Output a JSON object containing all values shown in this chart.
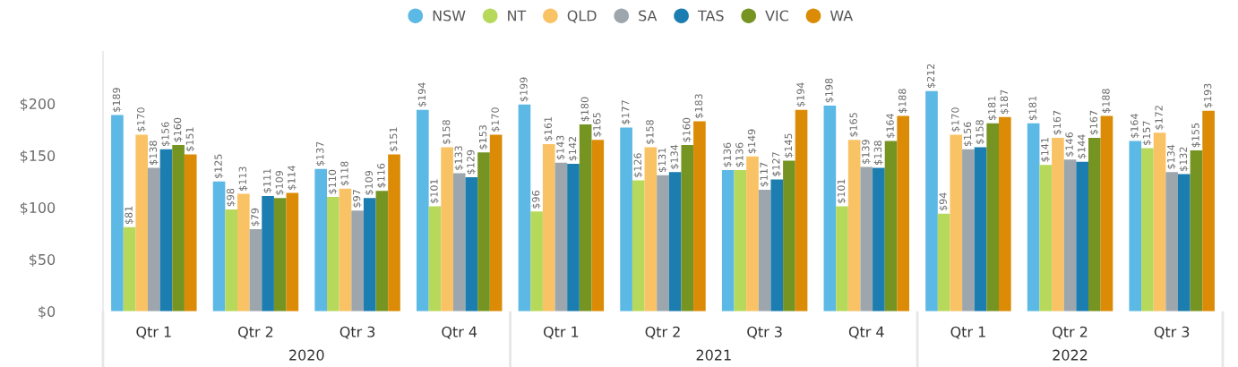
{
  "chart_data": {
    "type": "bar",
    "categories": [
      "Qtr 1",
      "Qtr 2",
      "Qtr 3",
      "Qtr 4",
      "Qtr 1",
      "Qtr 2",
      "Qtr 3",
      "Qtr 4",
      "Qtr 1",
      "Qtr 2",
      "Qtr 3"
    ],
    "series": [
      {
        "name": "NSW",
        "color": "#5cb8e4",
        "values": [
          189,
          125,
          137,
          194,
          199,
          177,
          136,
          198,
          212,
          181,
          164
        ],
        "value_labels": [
          "$189",
          "$125",
          "$137",
          "$194",
          "$199",
          "$177",
          "$136",
          "$198",
          "$212",
          "$181",
          "$164"
        ]
      },
      {
        "name": "NT",
        "color": "#b7d95b",
        "values": [
          81,
          98,
          110,
          101,
          96,
          126,
          136,
          101,
          94,
          141,
          157
        ],
        "value_labels": [
          "$81",
          "$98",
          "$110",
          "$101",
          "$96",
          "$126",
          "$136",
          "$101",
          "$94",
          "$141",
          "$157"
        ]
      },
      {
        "name": "QLD",
        "color": "#f9c365",
        "values": [
          170,
          113,
          118,
          158,
          161,
          158,
          149,
          165,
          170,
          167,
          172
        ],
        "value_labels": [
          "$170",
          "$113",
          "$118",
          "$158",
          "$161",
          "$158",
          "$149",
          "$165",
          "$170",
          "$167",
          "$172"
        ]
      },
      {
        "name": "SA",
        "color": "#9ea6ad",
        "values": [
          138,
          79,
          97,
          133,
          143,
          131,
          117,
          139,
          156,
          146,
          134
        ],
        "value_labels": [
          "$138",
          "$79",
          "$97",
          "$133",
          "$143",
          "$131",
          "$117",
          "$139",
          "$156",
          "$146",
          "$134"
        ]
      },
      {
        "name": "TAS",
        "color": "#1b7db0",
        "values": [
          156,
          111,
          109,
          129,
          142,
          134,
          127,
          138,
          158,
          144,
          132
        ],
        "value_labels": [
          "$156",
          "$111",
          "$109",
          "$129",
          "$142",
          "$134",
          "$127",
          "$138",
          "$158",
          "$144",
          "$132"
        ]
      },
      {
        "name": "VIC",
        "color": "#769422",
        "values": [
          160,
          109,
          116,
          153,
          180,
          160,
          145,
          164,
          181,
          167,
          155
        ],
        "value_labels": [
          "$160",
          "$109",
          "$116",
          "$153",
          "$180",
          "$160",
          "$145",
          "$164",
          "$181",
          "$167",
          "$155"
        ]
      },
      {
        "name": "WA",
        "color": "#db8b05",
        "values": [
          151,
          114,
          151,
          170,
          165,
          183,
          194,
          188,
          187,
          188,
          193
        ],
        "value_labels": [
          "$151",
          "$114",
          "$151",
          "$170",
          "$165",
          "$183",
          "$194",
          "$188",
          "$187",
          "$188",
          "$193"
        ]
      }
    ],
    "ylim": [
      0,
      250
    ],
    "yticks": [
      {
        "value": 0,
        "label": "$0"
      },
      {
        "value": 50,
        "label": "$50"
      },
      {
        "value": 100,
        "label": "$100"
      },
      {
        "value": 150,
        "label": "$150"
      },
      {
        "value": 200,
        "label": "$200"
      }
    ],
    "annotations": [
      "2020",
      "2021",
      "2022"
    ],
    "legend": "top",
    "grid": false
  }
}
